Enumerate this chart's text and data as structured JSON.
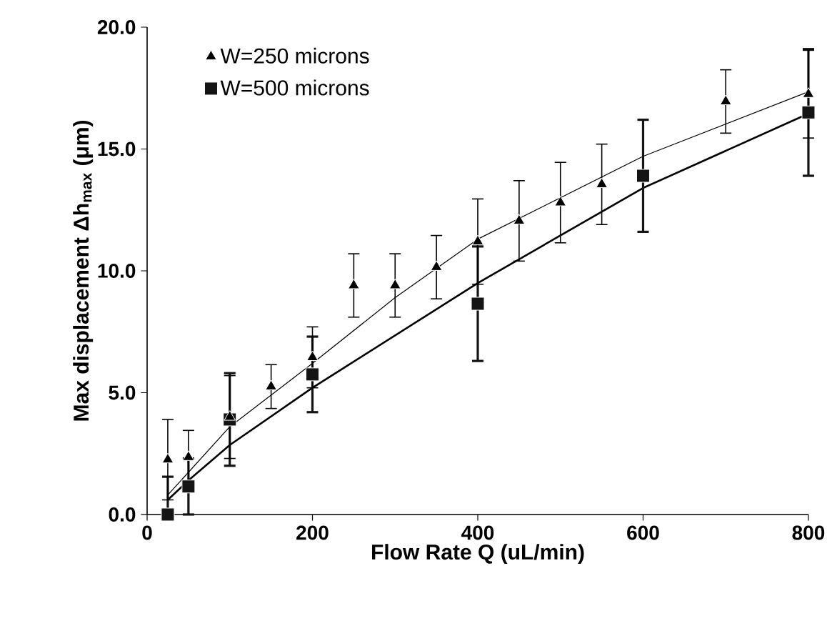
{
  "chart_data": {
    "type": "scatter",
    "xlabel": "Flow Rate Q (uL/min)",
    "ylabel": "Max displacement Δh$_{max}$ (μm)",
    "xlim": [
      0,
      800
    ],
    "ylim": [
      0,
      20
    ],
    "xticks": [
      0,
      200,
      400,
      600,
      800
    ],
    "yticks": [
      {
        "value": 0,
        "label": "0.0"
      },
      {
        "value": 5,
        "label": "5.0"
      },
      {
        "value": 10,
        "label": "10.0"
      },
      {
        "value": 15,
        "label": "15.0"
      },
      {
        "value": 20,
        "label": "20.0"
      }
    ],
    "legend": "top left",
    "line_style": "solid",
    "series": [
      {
        "name": "W=250 microns",
        "color": "#000000",
        "marker": "triangle",
        "x": [
          25,
          50,
          100,
          150,
          200,
          250,
          300,
          350,
          400,
          450,
          500,
          550,
          700,
          800
        ],
        "values": [
          2.25,
          2.35,
          4.0,
          5.25,
          6.45,
          9.4,
          9.4,
          10.15,
          11.2,
          12.05,
          12.8,
          13.55,
          16.95,
          17.25
        ],
        "errors": [
          1.65,
          1.1,
          1.7,
          0.9,
          1.25,
          1.3,
          1.3,
          1.3,
          1.75,
          1.65,
          1.65,
          1.65,
          1.3,
          1.8
        ]
      },
      {
        "name": "W=500 microns",
        "color": "#141414",
        "marker": "square",
        "x": [
          25,
          50,
          100,
          200,
          400,
          600,
          800
        ],
        "values": [
          0.0,
          1.15,
          3.9,
          5.75,
          8.65,
          13.9,
          16.5
        ],
        "errors": [
          [
            0.0,
            1.55
          ],
          1.15,
          1.9,
          1.55,
          2.35,
          2.3,
          2.6
        ]
      },
      {
        "type": "line",
        "color": "#000000",
        "marker": "none",
        "x": [
          25,
          100,
          200,
          300,
          400,
          600,
          800
        ],
        "values": [
          0.8,
          3.6,
          6.2,
          8.9,
          11.3,
          14.7,
          17.35
        ]
      },
      {
        "type": "line",
        "color": "#000000",
        "marker": "none",
        "x": [
          25,
          50,
          100,
          200,
          400,
          600,
          800
        ],
        "values": [
          0.6,
          1.4,
          2.85,
          5.2,
          9.5,
          13.4,
          16.45
        ]
      }
    ]
  }
}
